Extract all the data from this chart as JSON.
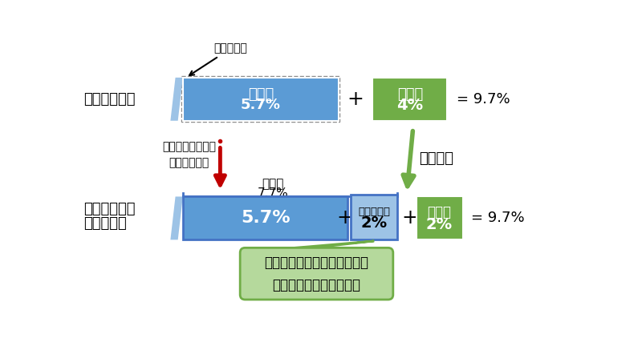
{
  "bg_color": "#ffffff",
  "blue_color": "#5b9bd5",
  "green_color": "#70ad47",
  "light_blue_color": "#9dc3e6",
  "light_green_color": "#b5d99c",
  "red_arrow_color": "#c00000",
  "green_arrow_color": "#70ad47",
  "row1_label": "平成２９年度",
  "row2_label1": "平成３０年度",
  "row2_label2": "以　　　降",
  "shimintax_label1": "市民税",
  "shimintax_value1": "5.7%",
  "kenmintax_label1": "県民税",
  "kenmintax_value1": "4%",
  "total1": "= 9.7%",
  "shimintax_label2": "市民税",
  "shimintax_sub_label": "7.7%",
  "shimintax_value2": "5.7%",
  "transferred_label": "移譲された",
  "transferred_value": "2%",
  "kenmintax_label2": "県民税",
  "kenmintax_value2": "2%",
  "total2": "= 9.7%",
  "note_5pct": "５％減税分",
  "note_traditional": "従来の５％減税分\nはそのままに",
  "note_transfer": "税源移譲",
  "bubble_text": "小・中学校等の教職員の給与\nなどを支払うための財源"
}
